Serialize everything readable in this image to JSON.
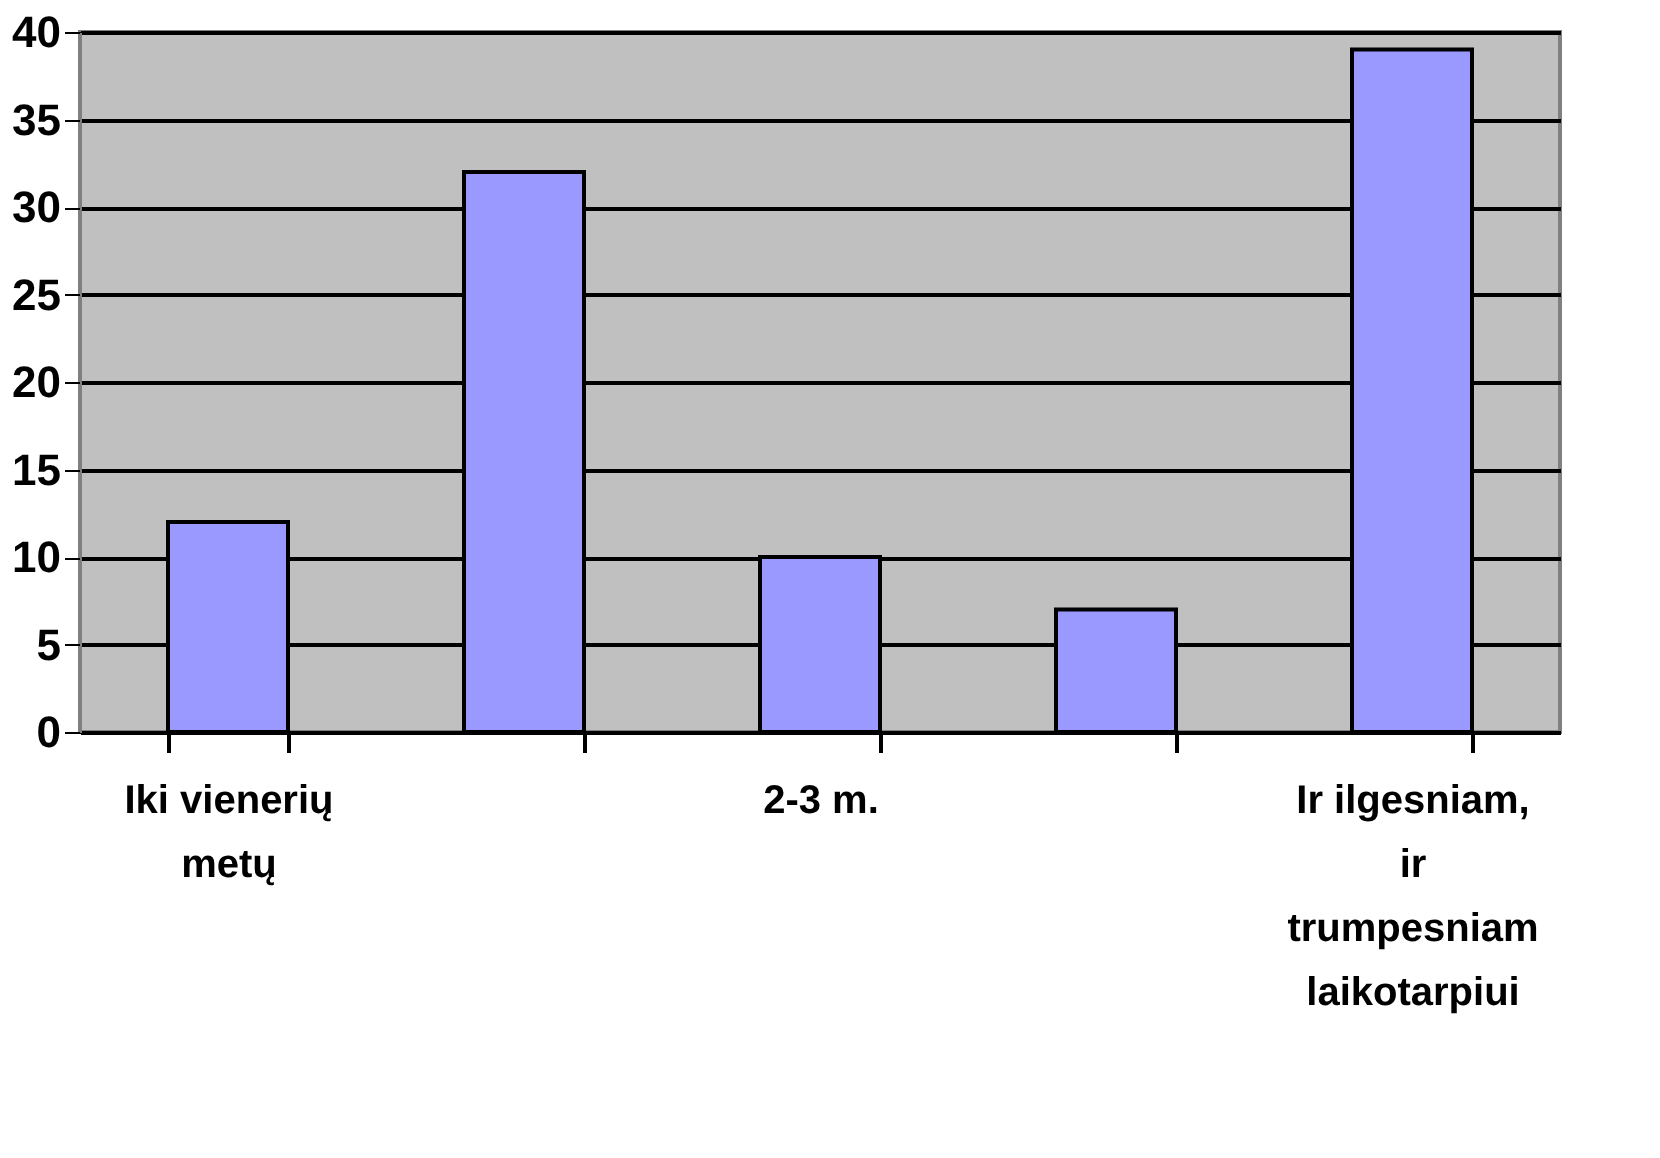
{
  "chart_data": {
    "type": "bar",
    "categories": [
      "Iki vienerių metų",
      null,
      "2-3 m.",
      null,
      "Ir ilgesniam, ir trumpesniam laikotarpiui"
    ],
    "values": [
      12,
      32,
      10,
      7,
      39
    ],
    "color": "#9999ff",
    "ylim": [
      0,
      40
    ],
    "yticks": [
      0,
      5,
      10,
      15,
      20,
      25,
      30,
      35,
      40
    ],
    "grid": "y"
  }
}
